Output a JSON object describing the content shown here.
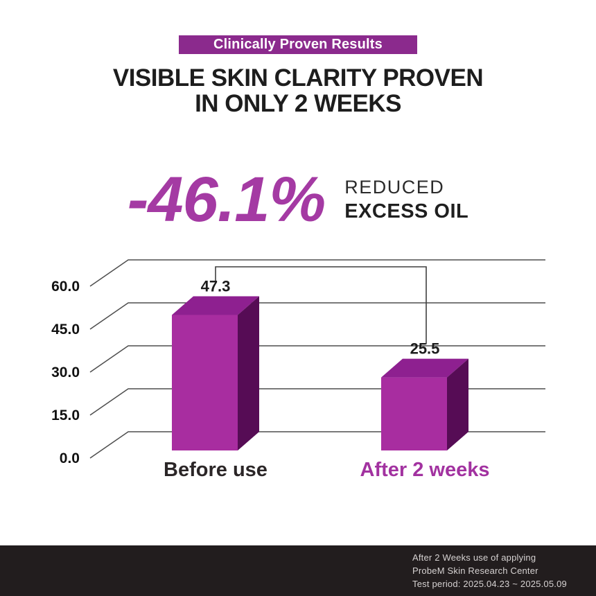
{
  "badge": {
    "label": "Clinically Proven Results"
  },
  "heading": {
    "line1": "VISIBLE SKIN CLARITY PROVEN",
    "line2": "IN ONLY 2 WEEKS"
  },
  "stat": {
    "value": "-46.1%",
    "desc_line1": "REDUCED",
    "desc_line2": "EXCESS OIL"
  },
  "chart_data": {
    "type": "bar",
    "variant": "3d",
    "title": "",
    "xlabel": "",
    "ylabel": "",
    "categories": [
      "Before use",
      "After 2 weeks"
    ],
    "values": [
      47.3,
      25.5
    ],
    "value_labels": [
      "47.3",
      "25.5"
    ],
    "yticks": [
      60.0,
      45.0,
      30.0,
      15.0,
      0.0
    ],
    "ytick_labels": [
      "60.0",
      "45.0",
      "30.0",
      "15.0",
      "0.0"
    ],
    "ylim": [
      0,
      60
    ],
    "grid": true,
    "legend": false,
    "annotation": {
      "type": "bracket",
      "connects": [
        "Before use",
        "After 2 weeks"
      ]
    },
    "grid_color": "#4d4d4d",
    "bracket_color": "#3f3f3f",
    "bar_colors": {
      "front": "#a82da0",
      "top": "#8e2090",
      "side": "#560c55"
    },
    "category_colors": [
      "#2b2627",
      "#a232a0"
    ]
  },
  "footer": {
    "line1": "After 2 Weeks use of applying",
    "line2": "ProbeM Skin Research Center",
    "line3": "Test period: 2025.04.23 ~ 2025.05.09"
  },
  "colors": {
    "badge_bg": "#8b2a8d",
    "stat_accent": "#a43aa3",
    "heading_text": "#1d1d1d",
    "footer_bg": "#221d1e",
    "footer_text": "#d6d2d2"
  }
}
